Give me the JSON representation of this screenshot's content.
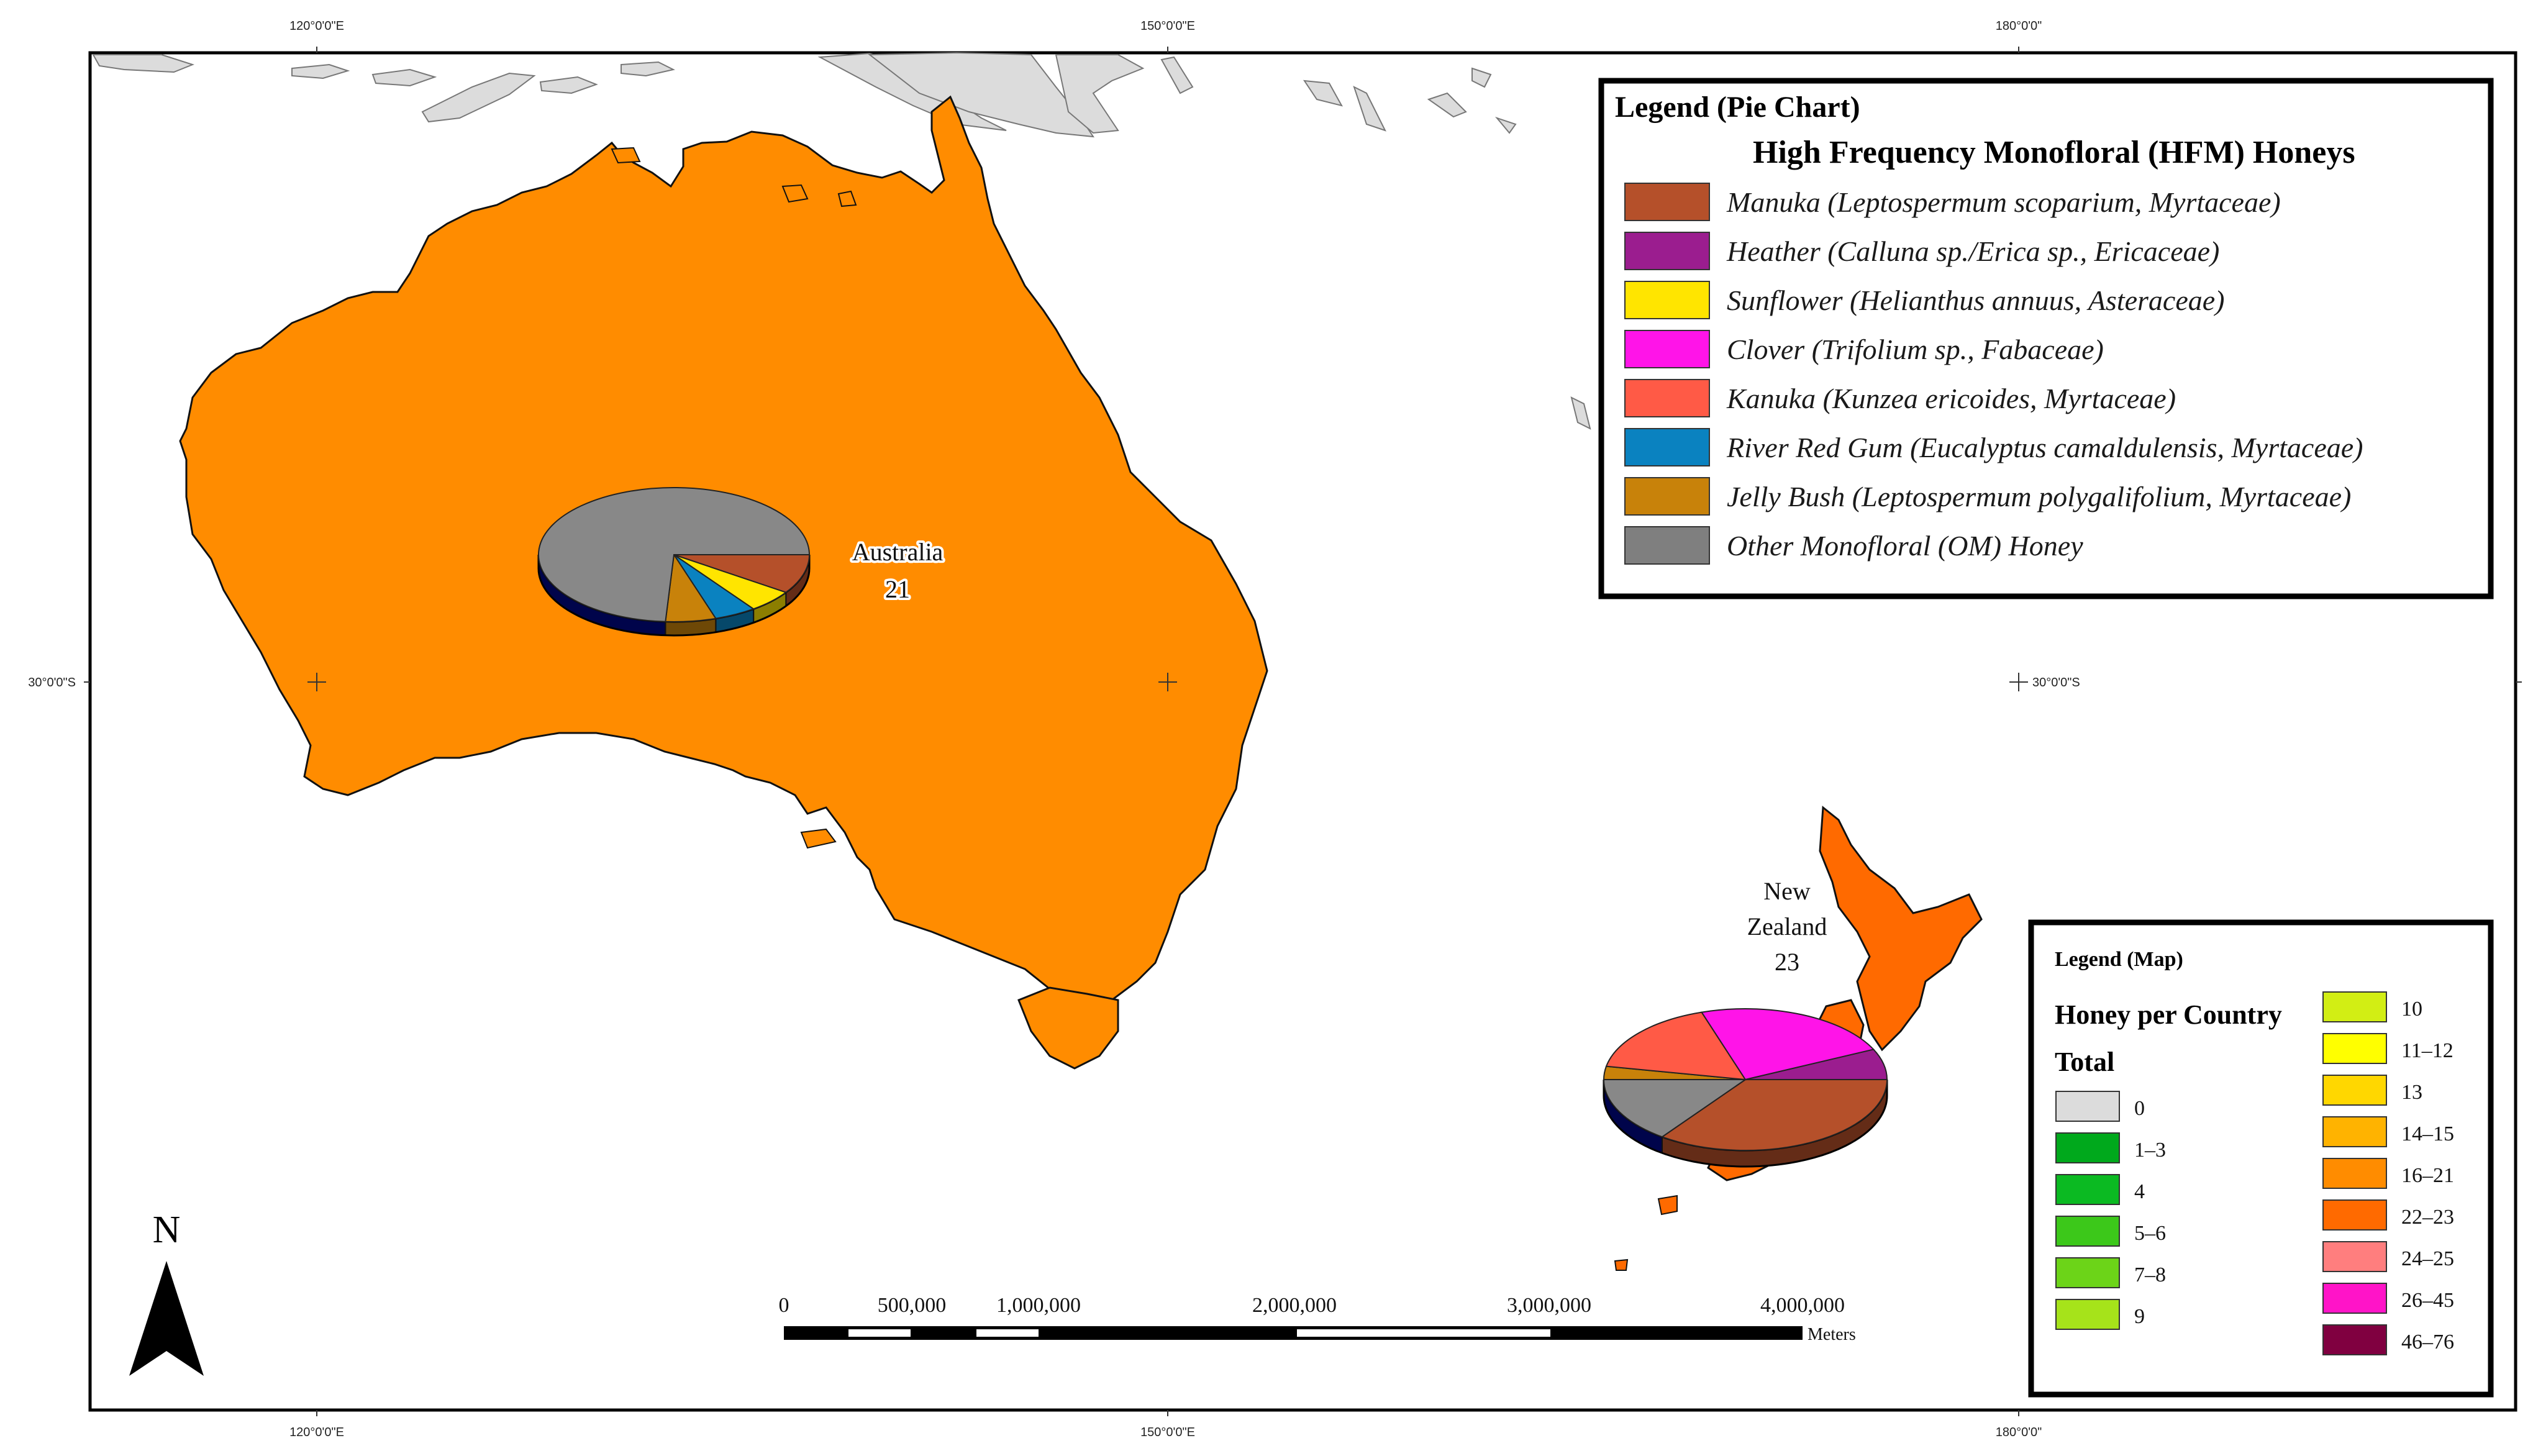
{
  "graticule": {
    "top_labels": [
      "120°0'0\"E",
      "150°0'0\"E",
      "180°0'0\""
    ],
    "bottom_labels": [
      "120°0'0\"E",
      "150°0'0\"E",
      "180°0'0\""
    ],
    "left_label": "30°0'0\"S",
    "right_label": "30°0'0\"S"
  },
  "countries": {
    "australia": {
      "name": "Australia",
      "total": "21",
      "fill": "#FF8C00"
    },
    "new_zealand": {
      "name_line1": "New",
      "name_line2": "Zealand",
      "total": "23",
      "fill": "#FF6A00"
    }
  },
  "pie_legend": {
    "title": "Legend (Pie Chart)",
    "subtitle": "High Frequency Monofloral (HFM) Honeys",
    "items": [
      {
        "label": "Manuka (Leptospermum scoparium, Myrtaceae)",
        "color": "#B5502A"
      },
      {
        "label": "Heather (Calluna sp./Erica sp., Ericaceae)",
        "color": "#9B1D8F"
      },
      {
        "label": "Sunflower (Helianthus annuus, Asteraceae)",
        "color": "#FFE500"
      },
      {
        "label": "Clover (Trifolium sp., Fabaceae)",
        "color": "#FF14E8"
      },
      {
        "label": "Kanuka (Kunzea ericoides, Myrtaceae)",
        "color": "#FF5A46"
      },
      {
        "label": "River Red Gum (Eucalyptus camaldulensis, Myrtaceae)",
        "color": "#0A82C0"
      },
      {
        "label": "Jelly Bush (Leptospermum polygalifolium, Myrtaceae)",
        "color": "#C8820A"
      },
      {
        "label": "Other Monofloral (OM) Honey",
        "color": "#7F7F7F"
      }
    ]
  },
  "map_legend": {
    "title": "Legend (Map)",
    "subtitle": "Honey per Country",
    "total_label": "Total",
    "left_classes": [
      {
        "label": "0",
        "color": "#DCDCDC"
      },
      {
        "label": "1–3",
        "color": "#00A91C"
      },
      {
        "label": "4",
        "color": "#0BBA22"
      },
      {
        "label": "5–6",
        "color": "#3CC81A"
      },
      {
        "label": "7–8",
        "color": "#6CD418"
      },
      {
        "label": "9",
        "color": "#A6E31A"
      }
    ],
    "right_classes": [
      {
        "label": "10",
        "color": "#D2EE14"
      },
      {
        "label": "11–12",
        "color": "#FFFF00"
      },
      {
        "label": "13",
        "color": "#FFD700"
      },
      {
        "label": "14–15",
        "color": "#FFB300"
      },
      {
        "label": "16–21",
        "color": "#FF8C00"
      },
      {
        "label": "22–23",
        "color": "#FF6A00"
      },
      {
        "label": "24–25",
        "color": "#FF7E7E"
      },
      {
        "label": "26–45",
        "color": "#FF14C8"
      },
      {
        "label": "46–76",
        "color": "#800040"
      }
    ]
  },
  "north_arrow": {
    "label": "N"
  },
  "scale_bar": {
    "labels": [
      "0",
      "500,000",
      "1,000,000",
      "2,000,000",
      "3,000,000",
      "4,000,000"
    ],
    "unit": "Meters"
  },
  "pies": {
    "australia": [
      {
        "category": "Manuka",
        "value": 9.5
      },
      {
        "category": "Sunflower",
        "value": 5.5
      },
      {
        "category": "River Red Gum",
        "value": 5
      },
      {
        "category": "Jelly Bush",
        "value": 6
      },
      {
        "category": "Other Monofloral (OM) Honey",
        "value": 74
      }
    ],
    "new_zealand": [
      {
        "category": "Manuka",
        "value": 35
      },
      {
        "category": "Other Monofloral (OM) Honey",
        "value": 15
      },
      {
        "category": "Jelly Bush",
        "value": 3
      },
      {
        "category": "Kanuka",
        "value": 17
      },
      {
        "category": "Clover",
        "value": 23
      },
      {
        "category": "Heather",
        "value": 7
      }
    ]
  }
}
